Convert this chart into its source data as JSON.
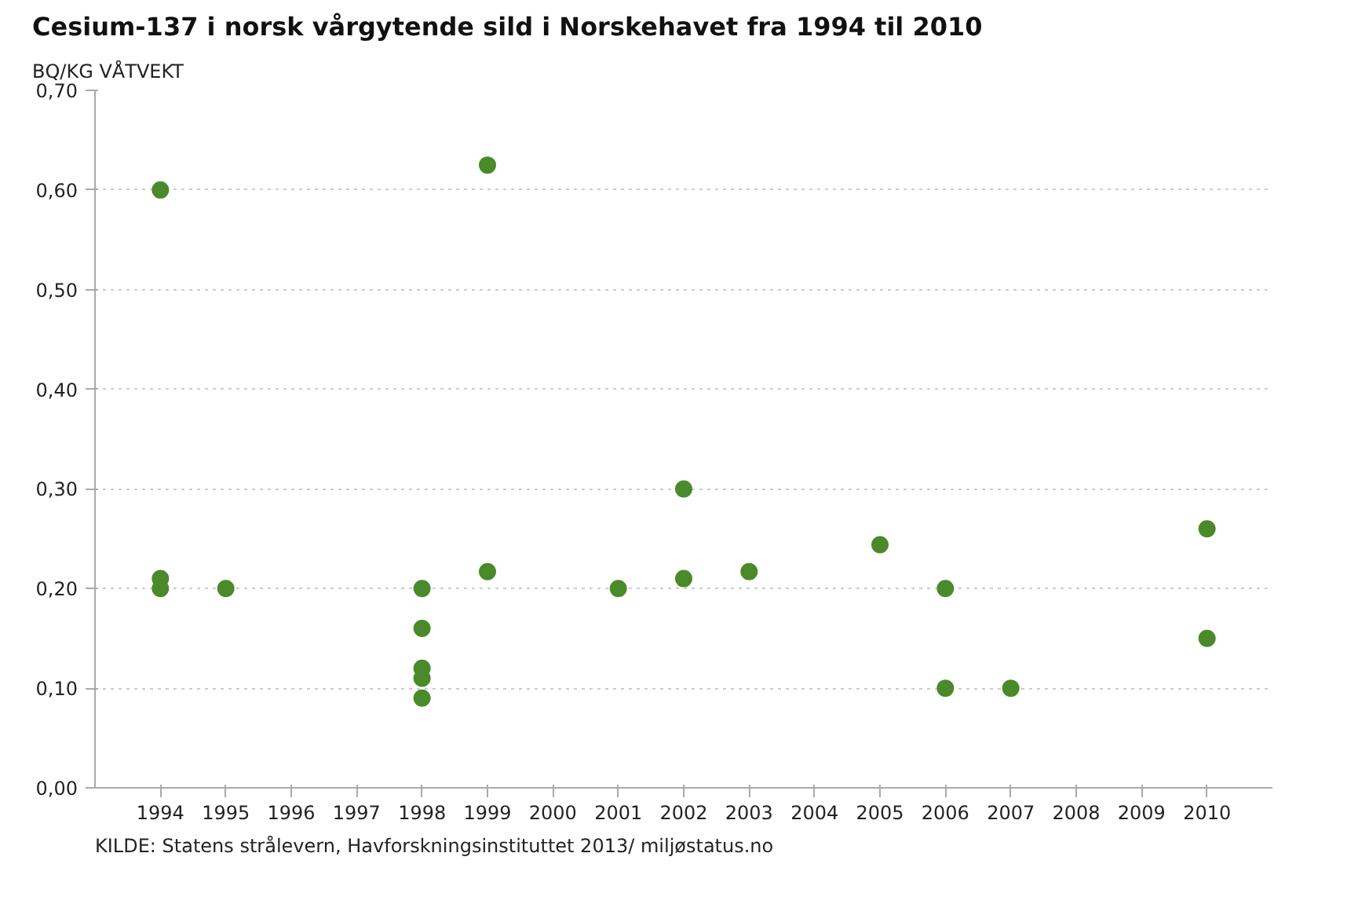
{
  "chart_data": {
    "type": "scatter",
    "title": "Cesium-137 i norsk vårgytende sild i Norskehavet fra 1994 til 2010",
    "ylabel": "BQ/KG VÅTVEKT",
    "annotations": [
      "KILDE: Statens strålevern, Havforskningsinstituttet 2013/ miljøstatus.no"
    ],
    "x": [
      1994,
      1994,
      1994,
      1995,
      1998,
      1998,
      1998,
      1998,
      1998,
      1999,
      1999,
      2001,
      2002,
      2002,
      2003,
      2005,
      2006,
      2006,
      2007,
      2010,
      2010
    ],
    "values": [
      0.6,
      0.21,
      0.2,
      0.2,
      0.2,
      0.16,
      0.12,
      0.11,
      0.09,
      0.625,
      0.217,
      0.2,
      0.3,
      0.21,
      0.217,
      0.244,
      0.2,
      0.1,
      0.1,
      0.26,
      0.15
    ],
    "color": "#4b8a2a",
    "marker": "circle",
    "grid": "y",
    "xlim": [
      1993,
      2011
    ],
    "xticks": [
      1994,
      1995,
      1996,
      1997,
      1998,
      1999,
      2000,
      2001,
      2002,
      2003,
      2004,
      2005,
      2006,
      2007,
      2008,
      2009,
      2010
    ],
    "ylim": [
      0,
      0.7
    ],
    "yticks": [
      {
        "value": 0,
        "label": "0,00"
      },
      {
        "value": 0.1,
        "label": "0,10"
      },
      {
        "value": 0.2,
        "label": "0,20"
      },
      {
        "value": 0.3,
        "label": "0,30"
      },
      {
        "value": 0.4,
        "label": "0,40"
      },
      {
        "value": 0.5,
        "label": "0,50"
      },
      {
        "value": 0.6,
        "label": "0,60"
      },
      {
        "value": 0.7,
        "label": "0,70"
      }
    ]
  }
}
